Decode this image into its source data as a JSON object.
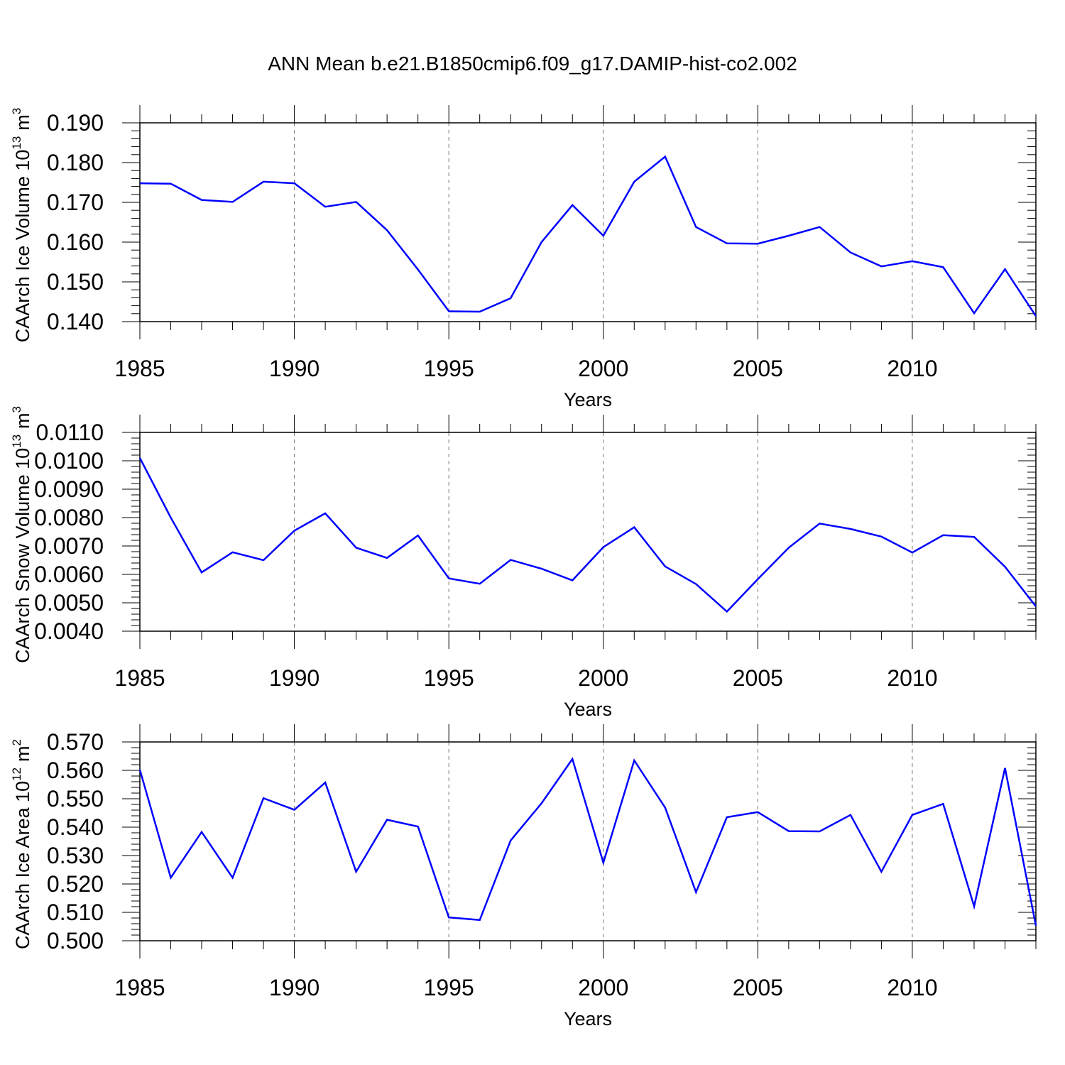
{
  "chart_data": [
    {
      "type": "line",
      "title": "ANN Mean b.e21.B1850cmip6.f09_g17.DAMIP-hist-co2.002",
      "ylabel": "CAArch Ice Volume 10",
      "ylabel_sup": "13",
      "ylabel_unit": "m",
      "ylabel_unit_sup": "3",
      "xlabel": "Years",
      "xlim": [
        1985,
        2014
      ],
      "ylim": [
        0.14,
        0.19
      ],
      "yticks": [
        "0.140",
        "0.150",
        "0.160",
        "0.170",
        "0.180",
        "0.190"
      ],
      "xticks": [
        "1985",
        "1990",
        "1995",
        "2000",
        "2005",
        "2010"
      ],
      "grid_x": true,
      "color": "#0000ff",
      "x": [
        1985,
        1986,
        1987,
        1988,
        1989,
        1990,
        1991,
        1992,
        1993,
        1994,
        1995,
        1996,
        1997,
        1998,
        1999,
        2000,
        2001,
        2002,
        2003,
        2004,
        2005,
        2006,
        2007,
        2008,
        2009,
        2010,
        2011,
        2012,
        2013,
        2014
      ],
      "values": [
        0.1748,
        0.1747,
        0.1706,
        0.1701,
        0.1752,
        0.1748,
        0.1689,
        0.1701,
        0.163,
        0.1531,
        0.1426,
        0.1425,
        0.1459,
        0.16,
        0.1693,
        0.1616,
        0.1752,
        0.1815,
        0.1638,
        0.1597,
        0.1596,
        0.1616,
        0.1638,
        0.1574,
        0.1539,
        0.1552,
        0.1537,
        0.1421,
        0.1532,
        0.1414
      ]
    },
    {
      "type": "line",
      "title": "",
      "ylabel": "CAArch Snow Volume 10",
      "ylabel_sup": "13",
      "ylabel_unit": "m",
      "ylabel_unit_sup": "3",
      "xlabel": "Years",
      "xlim": [
        1985,
        2014
      ],
      "ylim": [
        0.004,
        0.011
      ],
      "yticks": [
        "0.0040",
        "0.0050",
        "0.0060",
        "0.0070",
        "0.0080",
        "0.0090",
        "0.0100",
        "0.0110"
      ],
      "xticks": [
        "1985",
        "1990",
        "1995",
        "2000",
        "2005",
        "2010"
      ],
      "grid_x": true,
      "color": "#0000ff",
      "x": [
        1985,
        1986,
        1987,
        1988,
        1989,
        1990,
        1991,
        1992,
        1993,
        1994,
        1995,
        1996,
        1997,
        1998,
        1999,
        2000,
        2001,
        2002,
        2003,
        2004,
        2005,
        2006,
        2007,
        2008,
        2009,
        2010,
        2011,
        2012,
        2013,
        2014
      ],
      "values": [
        0.0101,
        0.008,
        0.00607,
        0.00678,
        0.0065,
        0.00754,
        0.00815,
        0.00694,
        0.00658,
        0.00737,
        0.00586,
        0.00567,
        0.00651,
        0.0062,
        0.00579,
        0.00696,
        0.00766,
        0.00628,
        0.00566,
        0.00469,
        0.00583,
        0.00694,
        0.00779,
        0.0076,
        0.00733,
        0.00677,
        0.00738,
        0.00732,
        0.00627,
        0.00487
      ]
    },
    {
      "type": "line",
      "title": "",
      "ylabel": "CAArch Ice Area 10",
      "ylabel_sup": "12",
      "ylabel_unit": "m",
      "ylabel_unit_sup": "2",
      "xlabel": "Years",
      "xlim": [
        1985,
        2014
      ],
      "ylim": [
        0.5,
        0.57
      ],
      "yticks": [
        "0.500",
        "0.510",
        "0.520",
        "0.530",
        "0.540",
        "0.550",
        "0.560",
        "0.570"
      ],
      "xticks": [
        "1985",
        "1990",
        "1995",
        "2000",
        "2005",
        "2010"
      ],
      "grid_x": true,
      "color": "#0000ff",
      "x": [
        1985,
        1986,
        1987,
        1988,
        1989,
        1990,
        1991,
        1992,
        1993,
        1994,
        1995,
        1996,
        1997,
        1998,
        1999,
        2000,
        2001,
        2002,
        2003,
        2004,
        2005,
        2006,
        2007,
        2008,
        2009,
        2010,
        2011,
        2012,
        2013,
        2014
      ],
      "values": [
        0.5602,
        0.5222,
        0.5383,
        0.5222,
        0.5502,
        0.5461,
        0.5557,
        0.5243,
        0.5426,
        0.5402,
        0.5082,
        0.5073,
        0.5353,
        0.5484,
        0.564,
        0.5275,
        0.5635,
        0.5469,
        0.5171,
        0.5435,
        0.5453,
        0.5386,
        0.5385,
        0.5443,
        0.5243,
        0.5443,
        0.5482,
        0.5121,
        0.5608,
        0.5053
      ]
    }
  ]
}
